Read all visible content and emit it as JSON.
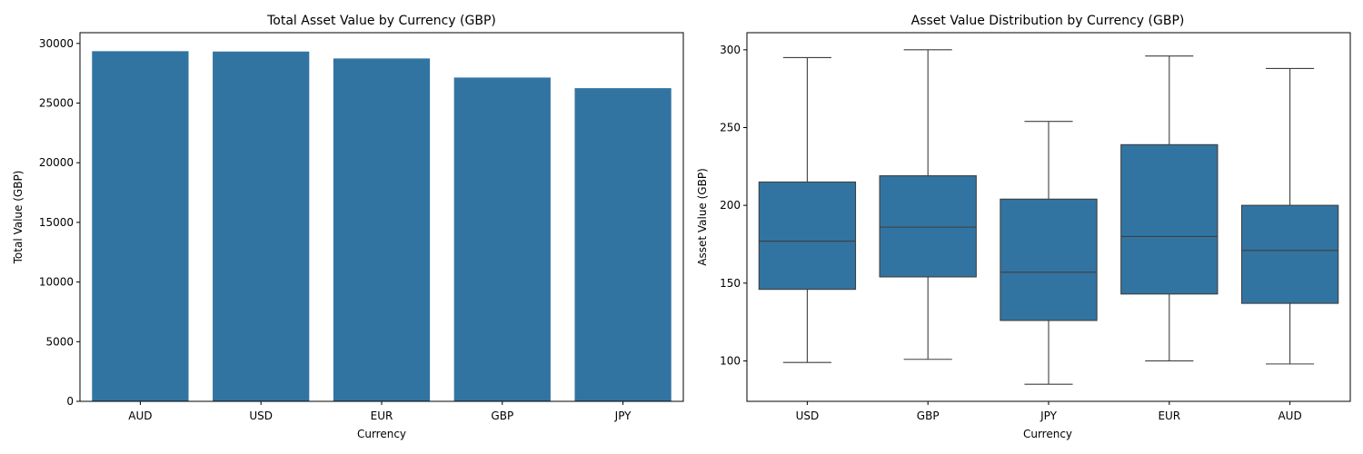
{
  "chart_data": [
    {
      "type": "bar",
      "title": "Total Asset Value by Currency (GBP)",
      "xlabel": "Currency",
      "ylabel": "Total Value (GBP)",
      "categories": [
        "AUD",
        "USD",
        "EUR",
        "GBP",
        "JPY"
      ],
      "values": [
        29350,
        29320,
        28740,
        27140,
        26250
      ],
      "ylim": [
        0,
        30900
      ],
      "yticks": [
        0,
        5000,
        10000,
        15000,
        20000,
        25000,
        30000
      ],
      "color": "#3274a1",
      "grid": false
    },
    {
      "type": "box",
      "title": "Asset Value Distribution by Currency (GBP)",
      "xlabel": "Currency",
      "ylabel": "Asset Value (GBP)",
      "categories": [
        "USD",
        "GBP",
        "JPY",
        "EUR",
        "AUD"
      ],
      "boxes": [
        {
          "whisker_low": 99,
          "q1": 146,
          "median": 177,
          "q3": 215,
          "whisker_high": 295
        },
        {
          "whisker_low": 101,
          "q1": 154,
          "median": 186,
          "q3": 219,
          "whisker_high": 300
        },
        {
          "whisker_low": 85,
          "q1": 126,
          "median": 157,
          "q3": 204,
          "whisker_high": 254
        },
        {
          "whisker_low": 100,
          "q1": 143,
          "median": 180,
          "q3": 239,
          "whisker_high": 296
        },
        {
          "whisker_low": 98,
          "q1": 137,
          "median": 171,
          "q3": 200,
          "whisker_high": 288
        }
      ],
      "ylim": [
        74,
        311
      ],
      "yticks": [
        100,
        150,
        200,
        250,
        300
      ],
      "color": "#3274a1",
      "grid": false
    }
  ]
}
